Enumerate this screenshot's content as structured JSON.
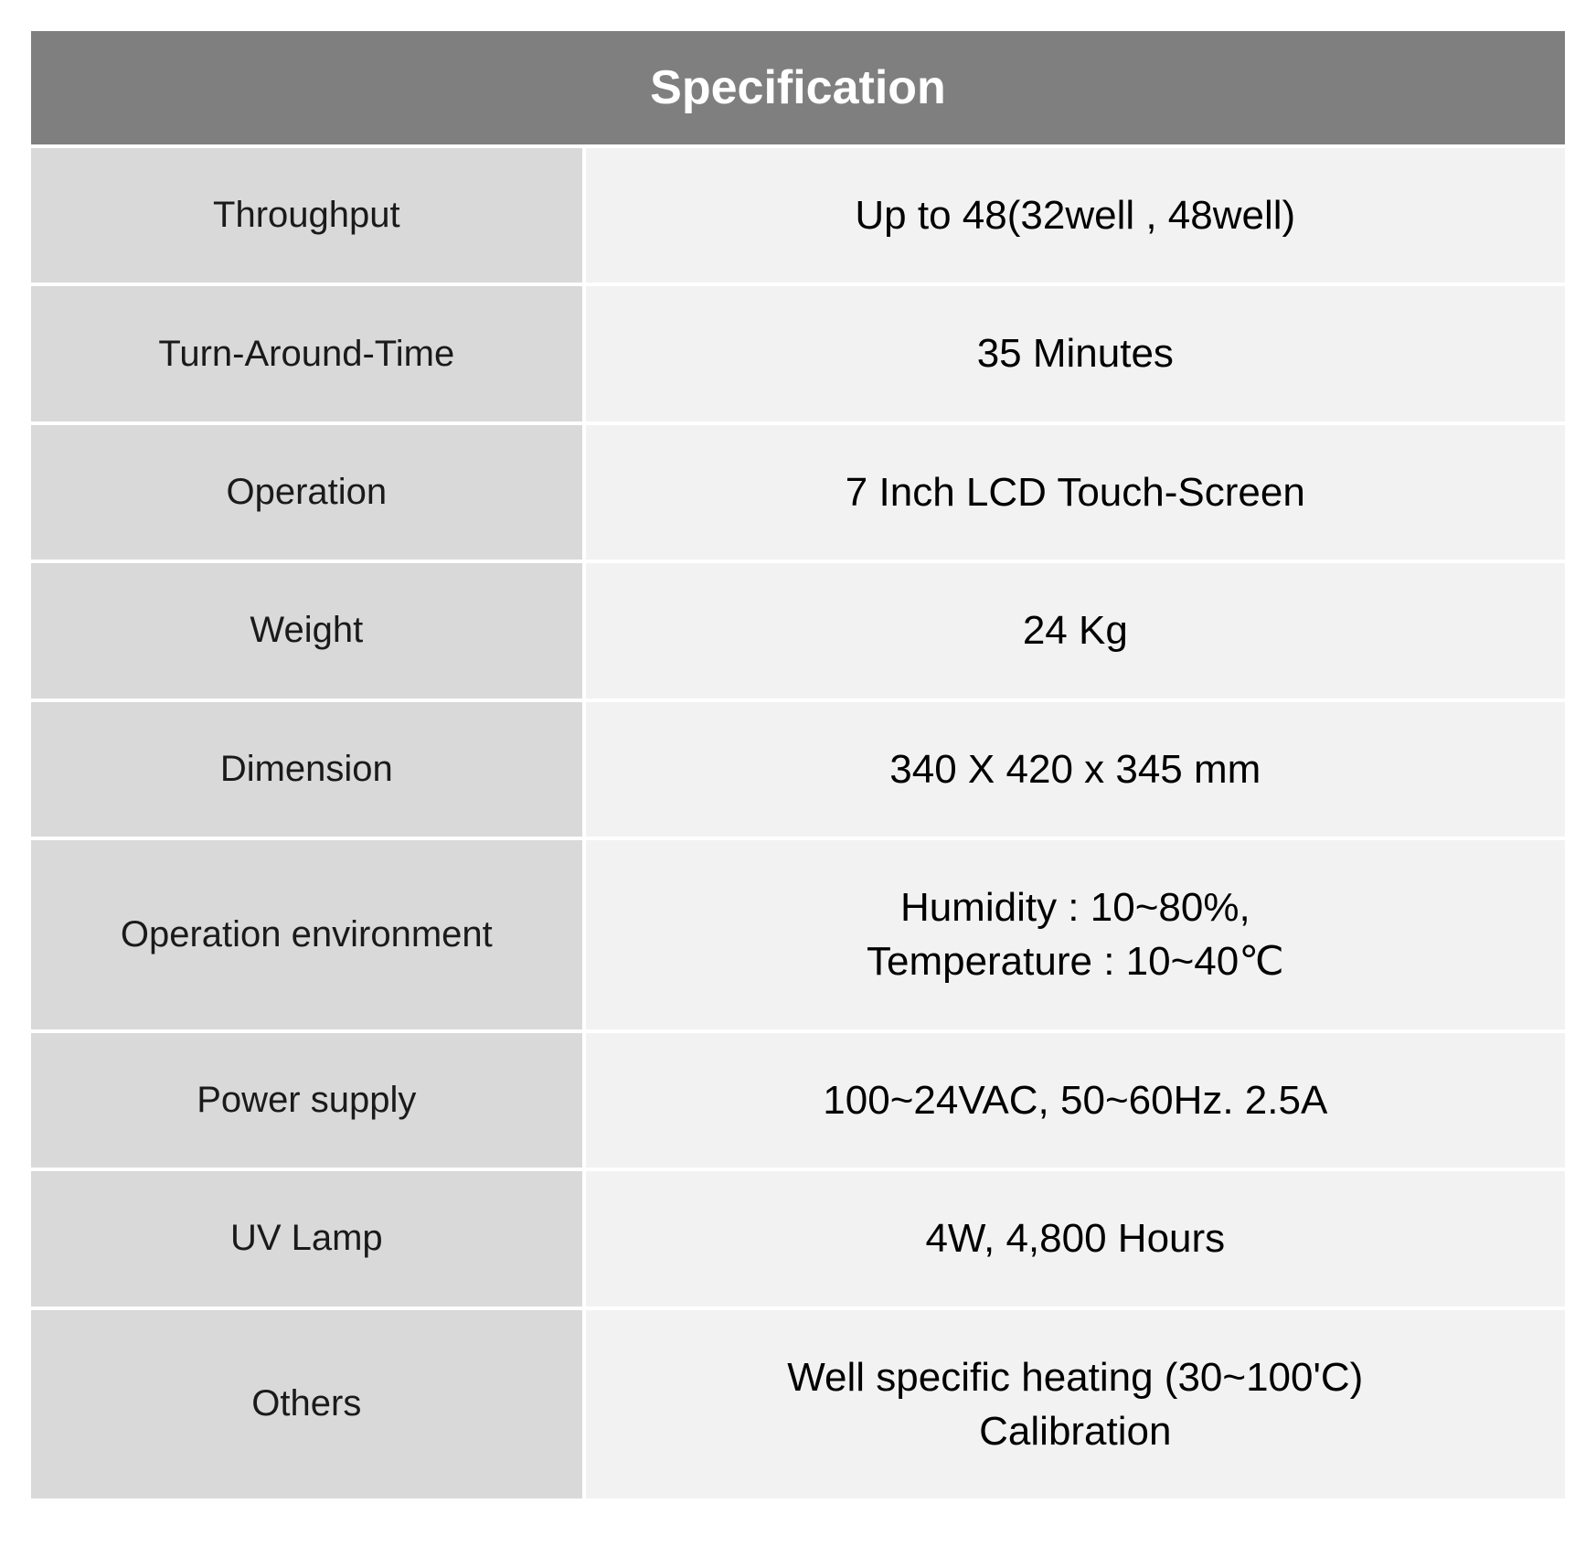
{
  "table": {
    "type": "table",
    "title": "Specification",
    "header_bg": "#7f7f7f",
    "header_fg": "#ffffff",
    "header_fontsize": 52,
    "label_bg": "#d9d9d9",
    "label_fg": "#1a1a1a",
    "label_fontsize": 40,
    "value_bg": "#f2f2f2",
    "value_fg": "#000000",
    "value_fontsize": 44,
    "cell_spacing": 4,
    "label_col_width_pct": 36,
    "value_col_width_pct": 64,
    "rows": [
      {
        "label": "Throughput",
        "value": "Up to 48(32well , 48well)"
      },
      {
        "label": "Turn-Around-Time",
        "value": "35 Minutes"
      },
      {
        "label": "Operation",
        "value": "7 Inch LCD Touch-Screen"
      },
      {
        "label": "Weight",
        "value": "24 Kg"
      },
      {
        "label": "Dimension",
        "value": "340  X 420 x 345 mm"
      },
      {
        "label": "Operation environment",
        "value": "Humidity : 10~80%,\nTemperature : 10~40℃"
      },
      {
        "label": "Power supply",
        "value": "100~24VAC, 50~60Hz. 2.5A"
      },
      {
        "label": "UV Lamp",
        "value": "4W, 4,800 Hours"
      },
      {
        "label": "Others",
        "value": "Well specific heating (30~100'C)\nCalibration"
      }
    ]
  }
}
